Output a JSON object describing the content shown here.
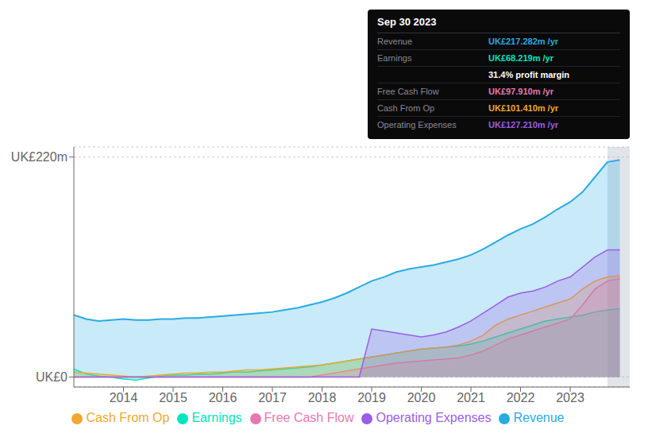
{
  "chart_data": {
    "type": "area",
    "x": [
      2013.0,
      2013.25,
      2013.5,
      2013.75,
      2014.0,
      2014.25,
      2014.5,
      2014.75,
      2015.0,
      2015.25,
      2015.5,
      2015.75,
      2016.0,
      2016.25,
      2016.5,
      2016.75,
      2017.0,
      2017.25,
      2017.5,
      2017.75,
      2018.0,
      2018.25,
      2018.5,
      2018.75,
      2019.0,
      2019.25,
      2019.5,
      2019.75,
      2020.0,
      2020.25,
      2020.5,
      2020.75,
      2021.0,
      2021.25,
      2021.5,
      2021.75,
      2022.0,
      2022.25,
      2022.5,
      2022.75,
      2023.0,
      2023.25,
      2023.5,
      2023.75,
      2024.0
    ],
    "series": [
      {
        "name": "Revenue",
        "color": "#29abe2",
        "values": [
          62,
          58,
          56,
          57,
          58,
          57,
          57,
          58,
          58,
          59,
          59,
          60,
          61,
          62,
          63,
          64,
          65,
          67,
          69,
          72,
          75,
          79,
          84,
          90,
          96,
          100,
          105,
          108,
          110,
          112,
          115,
          118,
          122,
          128,
          135,
          142,
          148,
          153,
          160,
          168,
          175,
          185,
          200,
          215,
          217
        ]
      },
      {
        "name": "Earnings",
        "color": "#00e5c0",
        "values": [
          8,
          3,
          1,
          0,
          -2,
          -3,
          -1,
          1,
          2,
          2,
          3,
          3,
          4,
          5,
          5,
          6,
          7,
          8,
          9,
          10,
          12,
          14,
          16,
          18,
          20,
          22,
          24,
          26,
          28,
          29,
          30,
          31,
          33,
          36,
          40,
          44,
          48,
          52,
          56,
          58,
          60,
          62,
          65,
          67,
          68
        ]
      },
      {
        "name": "Free Cash Flow",
        "color": "#e879b0",
        "values": [
          0,
          0,
          0,
          0,
          0,
          0,
          0,
          0,
          0,
          0,
          0,
          0,
          0,
          0,
          0,
          0,
          0,
          0,
          0,
          0,
          2,
          4,
          6,
          8,
          10,
          12,
          14,
          15,
          16,
          17,
          18,
          19,
          22,
          26,
          32,
          38,
          42,
          46,
          50,
          54,
          58,
          72,
          88,
          96,
          98
        ]
      },
      {
        "name": "Cash From Op",
        "color": "#f0a830",
        "values": [
          5,
          4,
          3,
          2,
          1,
          0,
          1,
          2,
          3,
          4,
          4,
          5,
          5,
          6,
          7,
          7,
          8,
          9,
          10,
          11,
          12,
          14,
          16,
          18,
          20,
          22,
          24,
          26,
          28,
          29,
          30,
          32,
          36,
          42,
          52,
          58,
          62,
          66,
          70,
          74,
          78,
          88,
          96,
          100,
          101
        ]
      },
      {
        "name": "Operating Expenses",
        "color": "#9b5de5",
        "values": [
          0,
          0,
          0,
          0,
          0,
          0,
          0,
          0,
          0,
          0,
          0,
          0,
          0,
          0,
          0,
          0,
          0,
          0,
          0,
          0,
          0,
          0,
          0,
          0,
          48,
          46,
          44,
          42,
          40,
          42,
          45,
          50,
          56,
          64,
          72,
          80,
          84,
          86,
          90,
          96,
          100,
          110,
          120,
          127,
          127
        ]
      }
    ],
    "xlim": [
      2013.0,
      2024.2
    ],
    "xticks": [
      2014,
      2015,
      2016,
      2017,
      2018,
      2019,
      2020,
      2021,
      2022,
      2023
    ],
    "ylim": [
      -10,
      230
    ],
    "yticks": [
      {
        "value": 0,
        "label": "UK£0"
      },
      {
        "value": 220,
        "label": "UK£220m"
      }
    ],
    "grid": true,
    "legend": "bottom",
    "highlight": [
      2023.75,
      2024.2
    ],
    "annotation": {
      "title": "Sep 30 2023",
      "rows": [
        {
          "label": "Revenue",
          "text": "UK£217.282m /yr",
          "color": "#29abe2"
        },
        {
          "label": "Earnings",
          "text": "UK£68.219m /yr",
          "color": "#00e5c0"
        },
        {
          "text": "31.4% profit margin",
          "color": "#ffffff"
        },
        {
          "label": "Free Cash Flow",
          "text": "UK£97.910m /yr",
          "color": "#e879b0"
        },
        {
          "label": "Cash From Op",
          "text": "UK£101.410m /yr",
          "color": "#f0a830"
        },
        {
          "label": "Operating Expenses",
          "text": "UK£127.210m /yr",
          "color": "#9b5de5"
        }
      ]
    }
  }
}
